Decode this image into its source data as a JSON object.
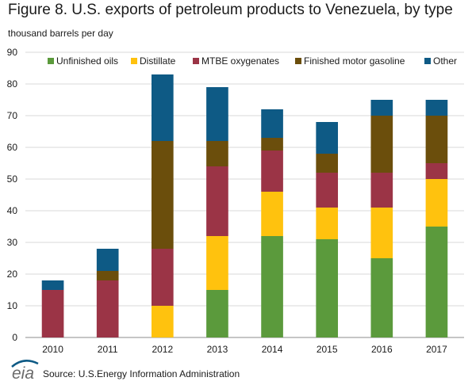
{
  "header": {
    "title": "Figure 8. U.S. exports of petroleum products to Venezuela, by type",
    "unit": "thousand barrels per day"
  },
  "footer": {
    "logo_text": "eia",
    "source": "Source: U.S.Energy Information Administration"
  },
  "chart_data": {
    "type": "bar",
    "stacked": true,
    "categories": [
      "2010",
      "2011",
      "2012",
      "2013",
      "2014",
      "2015",
      "2016",
      "2017"
    ],
    "series": [
      {
        "name": "Unfinished oils",
        "color": "#5b9a3c",
        "values": [
          0,
          0,
          0,
          15,
          32,
          31,
          25,
          35
        ]
      },
      {
        "name": "Distillate",
        "color": "#ffc20e",
        "values": [
          0,
          0,
          10,
          17,
          14,
          10,
          16,
          15
        ]
      },
      {
        "name": "MTBE oxygenates",
        "color": "#9b3446",
        "values": [
          15,
          18,
          18,
          22,
          13,
          11,
          11,
          5
        ]
      },
      {
        "name": "Finished motor gasoline",
        "color": "#6b4e0c",
        "values": [
          0,
          3,
          34,
          8,
          4,
          6,
          18,
          15
        ]
      },
      {
        "name": "Other",
        "color": "#0e5a85",
        "values": [
          3,
          7,
          21,
          17,
          9,
          10,
          5,
          5
        ]
      }
    ],
    "ylim": [
      0,
      90
    ],
    "yticks": [
      0,
      10,
      20,
      30,
      40,
      50,
      60,
      70,
      80,
      90
    ],
    "grid": true,
    "legend": "top"
  }
}
